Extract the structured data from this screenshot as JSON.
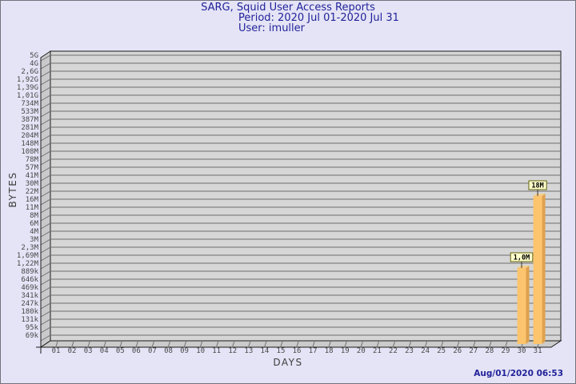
{
  "title": {
    "line1": "SARG, Squid User Access Reports",
    "line2": "Period: 2020 Jul 01-2020 Jul 31",
    "line3": "User: imuller"
  },
  "footer": {
    "timestamp": "Aug/01/2020 06:53"
  },
  "chart_data": {
    "type": "bar",
    "title": "SARG, Squid User Access Reports",
    "subtitle": "Period: 2020 Jul 01-2020 Jul 31",
    "user": "imuller",
    "xlabel": "DAYS",
    "ylabel": "BYTES",
    "y_scale": "log",
    "y_ticks": [
      "5G",
      "4G",
      "2,6G",
      "1,92G",
      "1,39G",
      "1,01G",
      "734M",
      "533M",
      "387M",
      "281M",
      "204M",
      "148M",
      "108M",
      "78M",
      "57M",
      "41M",
      "30M",
      "22M",
      "16M",
      "11M",
      "8M",
      "6M",
      "4M",
      "3M",
      "2,3M",
      "1,69M",
      "1,22M",
      "889k",
      "646k",
      "469k",
      "341k",
      "247k",
      "180k",
      "131k",
      "95k",
      "69k"
    ],
    "x_ticks": [
      "01",
      "02",
      "03",
      "04",
      "05",
      "06",
      "07",
      "08",
      "09",
      "10",
      "11",
      "12",
      "13",
      "14",
      "15",
      "16",
      "17",
      "18",
      "19",
      "20",
      "21",
      "22",
      "23",
      "24",
      "25",
      "26",
      "27",
      "28",
      "29",
      "30",
      "31"
    ],
    "bars": [
      {
        "day": "30",
        "value": 1000000,
        "label": "1,0M"
      },
      {
        "day": "31",
        "value": 18000000,
        "label": "18M"
      }
    ],
    "y_min_value": 69000,
    "y_max_value": 5000000000,
    "grid": true,
    "colors": {
      "background": "#e4e4f6",
      "plot_bg": "#d6d6d6",
      "wall": "#c9c9cc",
      "floor": "#cbcbcb",
      "grid_line": "#6e6e6e",
      "outline": "#1a1a1a",
      "bar_front": "#fcc46d",
      "bar_side": "#dfa14e",
      "bar_top": "#f2ce8a",
      "value_box_bg": "#ffffcc",
      "value_box_border": "#62620f",
      "tick_text": "#474747",
      "title_text": "#22229a"
    }
  }
}
